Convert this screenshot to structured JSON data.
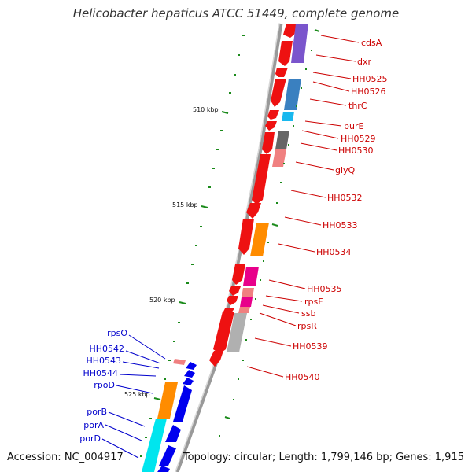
{
  "title": "Helicobacter hepaticus ATCC 51449, complete genome",
  "accession": "Accession: NC_004917",
  "summary": "Topology: circular; Length: 1,799,146 bp; Genes: 1,915",
  "colors": {
    "right_label": "#cc0000",
    "left_label": "#0000cc",
    "backbone": "#888888",
    "tick": "#1a8a1a"
  },
  "ticks": [
    "510 kbp",
    "515 kbp",
    "520 kbp",
    "525 kbp"
  ],
  "right_genes": [
    "cdsA",
    "dxr",
    "HH0525",
    "HH0526",
    "thrC",
    "purE",
    "HH0529",
    "HH0530",
    "glyQ",
    "HH0532",
    "HH0533",
    "HH0534",
    "HH0535",
    "rpsF",
    "ssb",
    "rpsR",
    "HH0539",
    "HH0540"
  ],
  "left_genes": [
    "rpsO",
    "HH0542",
    "HH0543",
    "HH0544",
    "rpoD",
    "porB",
    "porA",
    "porD"
  ]
}
